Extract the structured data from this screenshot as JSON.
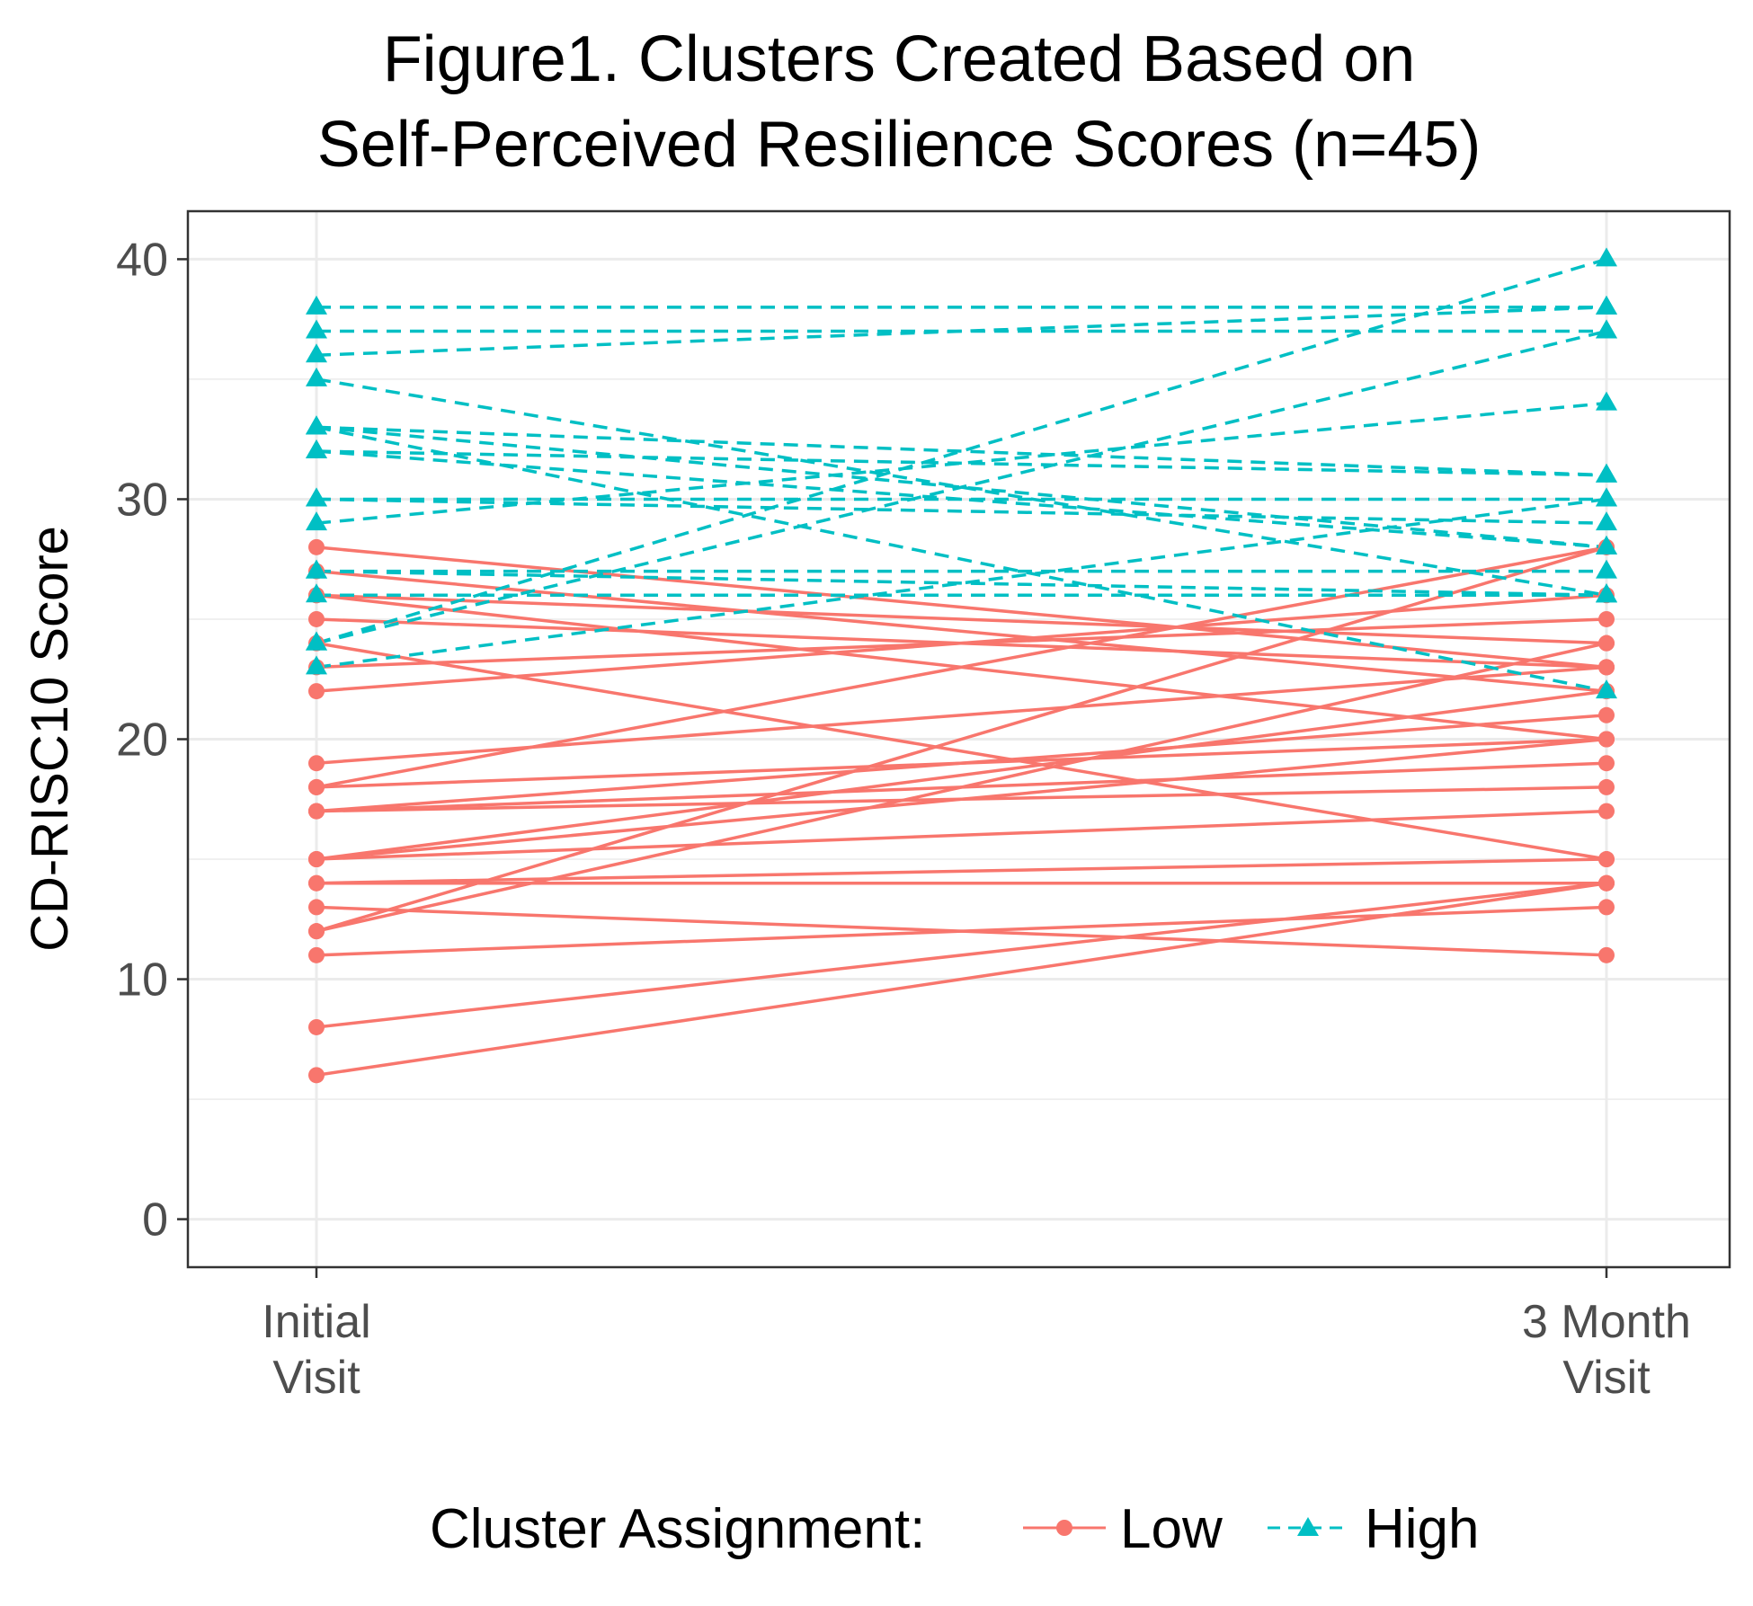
{
  "chart_data": {
    "type": "line",
    "title_lines": [
      "Figure1. Clusters Created Based on",
      "Self-Perceived Resilience Scores (n=45)"
    ],
    "xlabel": "",
    "ylabel": "CD-RISC10 Score",
    "categories": [
      [
        "Initial",
        "Visit"
      ],
      [
        "3 Month",
        "Visit"
      ]
    ],
    "ylim": [
      -2,
      42
    ],
    "y_ticks": [
      0,
      10,
      20,
      30,
      40
    ],
    "grid": true,
    "legend": {
      "title": "Cluster Assignment:",
      "position": "bottom",
      "entries": [
        {
          "label": "Low",
          "color": "#F8766D",
          "marker": "circle",
          "linestyle": "solid"
        },
        {
          "label": "High",
          "color": "#00BFC4",
          "marker": "triangle",
          "linestyle": "dashed"
        }
      ]
    },
    "series": [
      {
        "name": "Low",
        "color": "#F8766D",
        "marker": "circle",
        "linestyle": "solid",
        "pairs": [
          [
            28,
            23
          ],
          [
            27,
            22
          ],
          [
            26,
            20
          ],
          [
            26,
            24
          ],
          [
            25,
            23
          ],
          [
            24,
            15
          ],
          [
            23,
            25
          ],
          [
            22,
            26
          ],
          [
            19,
            23
          ],
          [
            18,
            28
          ],
          [
            18,
            20
          ],
          [
            17,
            21
          ],
          [
            17,
            19
          ],
          [
            17,
            18
          ],
          [
            15,
            22
          ],
          [
            15,
            20
          ],
          [
            15,
            17
          ],
          [
            14,
            15
          ],
          [
            14,
            14
          ],
          [
            13,
            11
          ],
          [
            12,
            28
          ],
          [
            12,
            24
          ],
          [
            11,
            13
          ],
          [
            8,
            14
          ],
          [
            6,
            14
          ]
        ]
      },
      {
        "name": "High",
        "color": "#00BFC4",
        "marker": "triangle",
        "linestyle": "dashed",
        "pairs": [
          [
            38,
            38
          ],
          [
            37,
            37
          ],
          [
            36,
            38
          ],
          [
            35,
            26
          ],
          [
            33,
            31
          ],
          [
            33,
            28
          ],
          [
            33,
            22
          ],
          [
            32,
            31
          ],
          [
            32,
            28
          ],
          [
            30,
            30
          ],
          [
            30,
            29
          ],
          [
            29,
            34
          ],
          [
            27,
            27
          ],
          [
            27,
            26
          ],
          [
            26,
            26
          ],
          [
            24,
            40
          ],
          [
            24,
            37
          ],
          [
            23,
            30
          ]
        ]
      }
    ]
  }
}
